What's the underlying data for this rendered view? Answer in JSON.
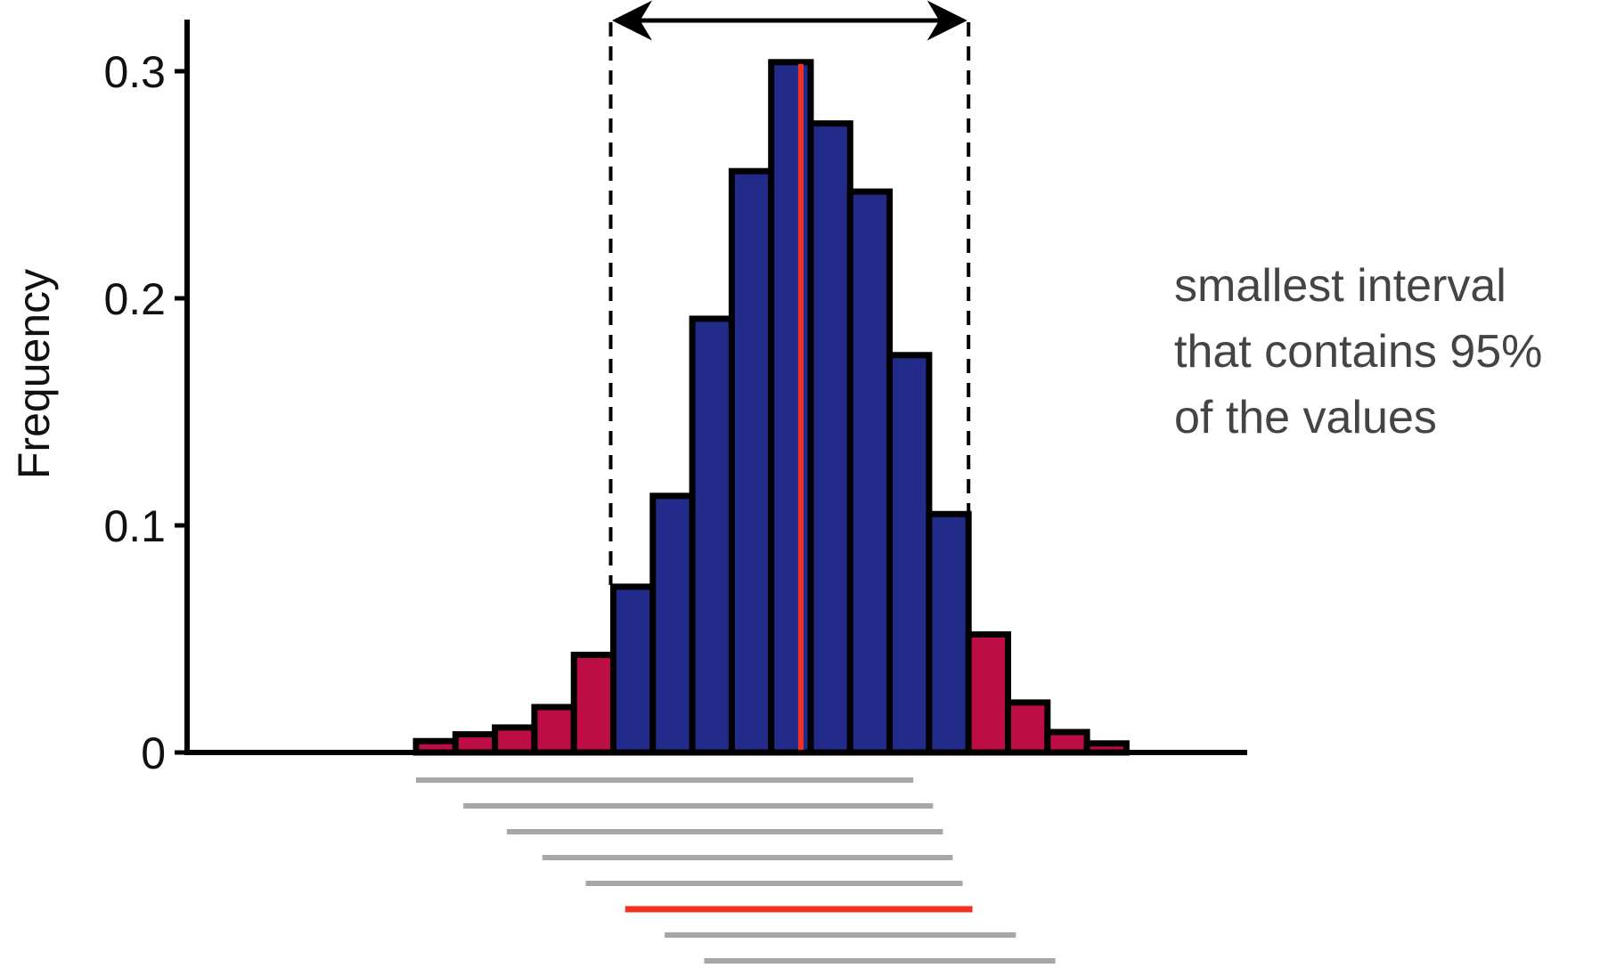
{
  "chart_data": {
    "type": "bar",
    "title": "",
    "xlabel": "",
    "ylabel": "Frequency",
    "ylim": [
      0,
      0.3
    ],
    "yticks": [
      {
        "value": 0,
        "label": "0"
      },
      {
        "value": 0.1,
        "label": "0.1"
      },
      {
        "value": 0.2,
        "label": "0.2"
      },
      {
        "value": 0.3,
        "label": "0.3"
      }
    ],
    "grid": false,
    "bins": [
      {
        "value": 0.005,
        "in_interval": false
      },
      {
        "value": 0.008,
        "in_interval": false
      },
      {
        "value": 0.011,
        "in_interval": false
      },
      {
        "value": 0.02,
        "in_interval": false
      },
      {
        "value": 0.043,
        "in_interval": false
      },
      {
        "value": 0.073,
        "in_interval": true
      },
      {
        "value": 0.113,
        "in_interval": true
      },
      {
        "value": 0.191,
        "in_interval": true
      },
      {
        "value": 0.256,
        "in_interval": true
      },
      {
        "value": 0.304,
        "in_interval": true
      },
      {
        "value": 0.277,
        "in_interval": true
      },
      {
        "value": 0.247,
        "in_interval": true
      },
      {
        "value": 0.175,
        "in_interval": true
      },
      {
        "value": 0.105,
        "in_interval": true
      },
      {
        "value": 0.052,
        "in_interval": false
      },
      {
        "value": 0.022,
        "in_interval": false
      },
      {
        "value": 0.009,
        "in_interval": false
      },
      {
        "value": 0.004,
        "in_interval": false
      }
    ],
    "colors": {
      "in_interval": "#232b8a",
      "outside_interval": "#bc0d45",
      "median_line": "#f03222",
      "candidate_interval": "#a6a8a7",
      "chosen_interval": "#f03222"
    },
    "annotation": {
      "lines": [
        "smallest interval",
        "that contains 95%",
        "of the values"
      ]
    },
    "candidate_intervals": [
      {
        "start_bin": 0.0,
        "end_bin": 12.6,
        "chosen": false
      },
      {
        "start_bin": 1.2,
        "end_bin": 13.1,
        "chosen": false
      },
      {
        "start_bin": 2.3,
        "end_bin": 13.35,
        "chosen": false
      },
      {
        "start_bin": 3.2,
        "end_bin": 13.6,
        "chosen": false
      },
      {
        "start_bin": 4.3,
        "end_bin": 13.85,
        "chosen": false
      },
      {
        "start_bin": 5.3,
        "end_bin": 14.1,
        "chosen": true
      },
      {
        "start_bin": 6.3,
        "end_bin": 15.2,
        "chosen": false
      },
      {
        "start_bin": 7.3,
        "end_bin": 16.2,
        "chosen": false
      }
    ],
    "interval_bounds_bin": [
      5,
      14
    ],
    "median_bin": 9.75
  }
}
